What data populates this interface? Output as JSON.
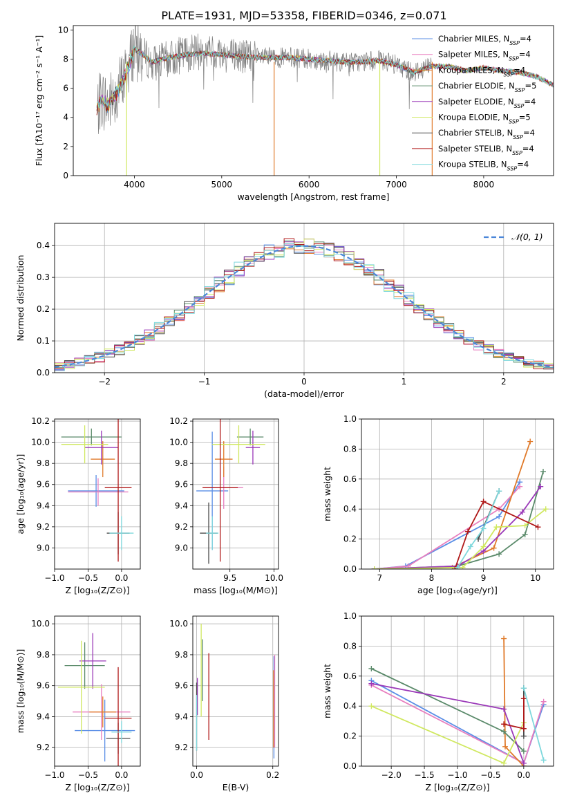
{
  "figure_title": "PLATE=1931, MJD=53358, FIBERID=0346, z=0.071",
  "chart_data": [
    {
      "id": "spectrum",
      "type": "line",
      "title": "PLATE=1931, MJD=53358, FIBERID=0346, z=0.071",
      "xlabel": "wavelength [Angstrom, rest frame]",
      "ylabel": "Flux [fλ10⁻¹⁷ erg cm⁻² s⁻¹ A⁻¹]",
      "xlim": [
        3300,
        8800
      ],
      "ylim": [
        0,
        10.3
      ],
      "xticks": [
        "4000",
        "5000",
        "6000",
        "7000",
        "8000"
      ],
      "yticks": [
        "0",
        "2",
        "4",
        "6",
        "8",
        "10"
      ],
      "grid": false,
      "legend_position": "right",
      "observed_color": "#808080",
      "observed_profile": {
        "x": [
          3570,
          3620,
          3700,
          3800,
          3900,
          4000,
          4100,
          4200,
          4400,
          4600,
          4800,
          5000,
          5200,
          5400,
          5600,
          5800,
          6000,
          6200,
          6400,
          6600,
          6800,
          7000,
          7200,
          7400
        ],
        "y": [
          4.4,
          5.3,
          4.9,
          5.8,
          6.9,
          8.9,
          8.3,
          7.7,
          8.0,
          8.4,
          8.5,
          8.4,
          8.2,
          8.1,
          8.1,
          8.1,
          8.0,
          7.9,
          7.8,
          7.8,
          7.9,
          7.6,
          7.1,
          7.6
        ]
      },
      "model_profile": {
        "x": [
          3570,
          3620,
          3700,
          3800,
          3900,
          4000,
          4100,
          4200,
          4400,
          4600,
          4800,
          5000,
          5200,
          5400,
          5600,
          5800,
          6000,
          6200,
          6400,
          6600,
          6800,
          7000,
          7200,
          7400,
          7600,
          7800,
          8000,
          8200,
          8400,
          8600,
          8800
        ],
        "y": [
          4.6,
          5.2,
          4.8,
          5.7,
          6.9,
          8.7,
          8.3,
          7.8,
          8.1,
          8.3,
          8.4,
          8.3,
          8.2,
          8.1,
          8.1,
          8.1,
          8.0,
          7.9,
          7.8,
          7.8,
          7.9,
          7.6,
          7.1,
          7.5,
          7.5,
          7.2,
          7.4,
          7.2,
          7.1,
          6.8,
          6.2
        ]
      },
      "series": [
        {
          "name": "Chabrier MILES, N_SSP=4",
          "color": "#5a8ee6"
        },
        {
          "name": "Salpeter MILES, N_SSP=4",
          "color": "#e87fbf"
        },
        {
          "name": "Kroupa MILES, N_SSP=4",
          "color": "#e07a2a"
        },
        {
          "name": "Chabrier ELODIE, N_SSP=5",
          "color": "#5a8a6a"
        },
        {
          "name": "Salpeter ELODIE, N_SSP=4",
          "color": "#9a38b8"
        },
        {
          "name": "Kroupa ELODIE, N_SSP=5",
          "color": "#d0e860"
        },
        {
          "name": "Chabrier STELIB, N_SSP=4",
          "color": "#4a4a4a"
        },
        {
          "name": "Salpeter STELIB, N_SSP=4",
          "color": "#b01818"
        },
        {
          "name": "Kroupa STELIB, N_SSP=4",
          "color": "#7ed8dc"
        }
      ],
      "legend": {
        "entries": [
          {
            "text": "Chabrier MILES, N",
            "sub": "SSP",
            "tail": "=4",
            "color": "#5a8ee6"
          },
          {
            "text": "Salpeter MILES, N",
            "sub": "SSP",
            "tail": "=4",
            "color": "#e87fbf"
          },
          {
            "text": "Kroupa MILES, N",
            "sub": "SSP",
            "tail": "=4",
            "color": "#e07a2a"
          },
          {
            "text": "Chabrier ELODIE, N",
            "sub": "SSP",
            "tail": "=5",
            "color": "#5a8a6a"
          },
          {
            "text": "Salpeter ELODIE, N",
            "sub": "SSP",
            "tail": "=4",
            "color": "#9a38b8"
          },
          {
            "text": "Kroupa ELODIE, N",
            "sub": "SSP",
            "tail": "=5",
            "color": "#d0e860"
          },
          {
            "text": "Chabrier STELIB, N",
            "sub": "SSP",
            "tail": "=4",
            "color": "#4a4a4a"
          },
          {
            "text": "Salpeter STELIB, N",
            "sub": "SSP",
            "tail": "=4",
            "color": "#b01818"
          },
          {
            "text": "Kroupa STELIB, N",
            "sub": "SSP",
            "tail": "=4",
            "color": "#7ed8dc"
          }
        ]
      },
      "spikes": [
        {
          "x": 3910,
          "color": "#d0e860"
        },
        {
          "x": 5600,
          "color": "#e07a2a"
        },
        {
          "x": 6810,
          "color": "#d0e860"
        },
        {
          "x": 7410,
          "color": "#e07a2a"
        }
      ]
    },
    {
      "id": "residuals",
      "type": "line",
      "xlabel": "(data-model)/error",
      "ylabel": "Normed distribution",
      "xlim": [
        -2.5,
        2.5
      ],
      "ylim": [
        0,
        0.47
      ],
      "xticks": [
        "−2",
        "−1",
        "0",
        "1",
        "2"
      ],
      "yticks": [
        "0.0",
        "0.1",
        "0.2",
        "0.3",
        "0.4"
      ],
      "grid": true,
      "legend_position": "top-right",
      "legend_label": "𝒩(0, 1)",
      "normal_curve": {
        "mean": 0,
        "std": 1,
        "color": "#4a86d8"
      },
      "bins": {
        "start": -2.5,
        "width": 0.1
      },
      "histogram_profile": [
        0.02,
        0.025,
        0.03,
        0.035,
        0.045,
        0.05,
        0.055,
        0.06,
        0.07,
        0.08,
        0.09,
        0.1,
        0.115,
        0.13,
        0.14,
        0.155,
        0.17,
        0.185,
        0.2,
        0.215,
        0.235,
        0.25,
        0.265,
        0.28,
        0.3,
        0.32,
        0.335,
        0.35,
        0.36,
        0.375,
        0.39,
        0.39,
        0.395,
        0.4,
        0.395,
        0.4,
        0.4,
        0.395,
        0.39,
        0.385,
        0.375,
        0.365,
        0.35,
        0.34,
        0.325,
        0.31,
        0.29,
        0.275,
        0.26,
        0.24,
        0.225,
        0.21,
        0.195,
        0.18,
        0.165,
        0.15,
        0.135,
        0.12,
        0.105,
        0.095,
        0.085,
        0.075,
        0.065,
        0.055,
        0.05,
        0.045,
        0.04,
        0.035,
        0.03,
        0.028
      ]
    },
    {
      "id": "age-vs-z",
      "type": "scatter",
      "xlabel": "Z [log₁₀(Z/Z⊙)]",
      "ylabel": "age  [log₁₀(age/yr)]",
      "xlim": [
        -1.0,
        0.28
      ],
      "ylim": [
        8.8,
        10.22
      ],
      "xticks": [
        "−1.0",
        "−0.5",
        "0.0"
      ],
      "yticks": [
        "9.0",
        "9.2",
        "9.4",
        "9.6",
        "9.8",
        "10.0",
        "10.2"
      ],
      "grid": true,
      "points": [
        {
          "x": -0.38,
          "y": 9.54,
          "xerr": 0.42,
          "yerr": 0.15,
          "color": "#5a8ee6"
        },
        {
          "x": -0.35,
          "y": 9.53,
          "xerr": 0.45,
          "yerr": 0.13,
          "color": "#e87fbf"
        },
        {
          "x": -0.28,
          "y": 9.84,
          "xerr": 0.18,
          "yerr": 0.17,
          "color": "#e07a2a"
        },
        {
          "x": -0.45,
          "y": 10.05,
          "xerr": 0.45,
          "yerr": 0.08,
          "color": "#5a8a6a"
        },
        {
          "x": -0.3,
          "y": 9.95,
          "xerr": 0.25,
          "yerr": 0.16,
          "color": "#9a38b8"
        },
        {
          "x": -0.55,
          "y": 9.98,
          "xerr": 0.35,
          "yerr": 0.18,
          "color": "#d0e860"
        },
        {
          "x": -0.05,
          "y": 9.14,
          "xerr": 0.17,
          "yerr": 0.2,
          "color": "#4a4a4a"
        },
        {
          "x": -0.05,
          "y": 9.57,
          "xerr": 0.2,
          "yerr": 0.7,
          "color": "#b01818"
        },
        {
          "x": 0.0,
          "y": 9.14,
          "xerr": 0.18,
          "yerr": 0.16,
          "color": "#7ed8dc"
        }
      ]
    },
    {
      "id": "age-vs-mass",
      "type": "scatter",
      "xlabel": "mass [log₁₀(M/M⊙)]",
      "ylabel": "",
      "xlim": [
        9.08,
        10.05
      ],
      "ylim": [
        8.8,
        10.22
      ],
      "xticks": [
        "9.5",
        "10.0"
      ],
      "yticks": [
        "9.0",
        "9.2",
        "9.4",
        "9.6",
        "9.8",
        "10.0",
        "10.2"
      ],
      "grid": true,
      "points": [
        {
          "x": 9.3,
          "y": 9.54,
          "xerr": 0.18,
          "yerr": 0.56,
          "color": "#5a8ee6"
        },
        {
          "x": 9.43,
          "y": 9.57,
          "xerr": 0.22,
          "yerr": 0.2,
          "color": "#e87fbf"
        },
        {
          "x": 9.43,
          "y": 9.84,
          "xerr": 0.1,
          "yerr": 0.17,
          "color": "#e07a2a"
        },
        {
          "x": 9.73,
          "y": 10.05,
          "xerr": 0.15,
          "yerr": 0.08,
          "color": "#5a8a6a"
        },
        {
          "x": 9.76,
          "y": 9.95,
          "xerr": 0.08,
          "yerr": 0.16,
          "color": "#9a38b8"
        },
        {
          "x": 9.6,
          "y": 9.98,
          "xerr": 0.3,
          "yerr": 0.18,
          "color": "#d0e860"
        },
        {
          "x": 9.26,
          "y": 9.14,
          "xerr": 0.1,
          "yerr": 0.29,
          "color": "#4a4a4a"
        },
        {
          "x": 9.39,
          "y": 9.57,
          "xerr": 0.2,
          "yerr": 0.7,
          "color": "#b01818"
        },
        {
          "x": 9.3,
          "y": 9.14,
          "xerr": 0.07,
          "yerr": 0.16,
          "color": "#7ed8dc"
        }
      ]
    },
    {
      "id": "weight-vs-age",
      "type": "line",
      "xlabel": "age  [log₁₀(age/yr)]",
      "ylabel": "mass weight",
      "xlim": [
        6.65,
        10.35
      ],
      "ylim": [
        0,
        1.0
      ],
      "xticks": [
        "7",
        "8",
        "9",
        "10"
      ],
      "yticks": [
        "0.0",
        "0.2",
        "0.4",
        "0.6",
        "0.8",
        "1.0"
      ],
      "grid": true,
      "series": [
        {
          "name": "Chabrier MILES",
          "color": "#5a8ee6",
          "x": [
            6.9,
            7.5,
            9.3,
            9.7
          ],
          "y": [
            0.0,
            0.02,
            0.35,
            0.58
          ]
        },
        {
          "name": "Salpeter MILES",
          "color": "#e87fbf",
          "x": [
            6.9,
            7.55,
            9.3,
            9.7
          ],
          "y": [
            0.0,
            0.02,
            0.4,
            0.55
          ]
        },
        {
          "name": "Kroupa MILES",
          "color": "#e07a2a",
          "x": [
            6.9,
            8.4,
            9.2,
            9.9
          ],
          "y": [
            0.0,
            0.01,
            0.14,
            0.85
          ]
        },
        {
          "name": "Chabrier ELODIE",
          "color": "#5a8a6a",
          "x": [
            6.9,
            8.5,
            9.3,
            9.8,
            10.15
          ],
          "y": [
            0.0,
            0.02,
            0.1,
            0.23,
            0.65
          ]
        },
        {
          "name": "Salpeter ELODIE",
          "color": "#9a38b8",
          "x": [
            6.9,
            8.5,
            9.0,
            9.75,
            10.1
          ],
          "y": [
            0.0,
            0.02,
            0.12,
            0.38,
            0.55
          ]
        },
        {
          "name": "Kroupa ELODIE",
          "color": "#d0e860",
          "x": [
            6.9,
            8.6,
            9.0,
            9.25,
            9.8,
            10.2
          ],
          "y": [
            0.0,
            0.01,
            0.15,
            0.28,
            0.29,
            0.4
          ]
        },
        {
          "name": "Chabrier STELIB",
          "color": "#4a4a4a",
          "x": [
            8.9,
            9.3
          ],
          "y": [
            0.2,
            0.52
          ]
        },
        {
          "name": "Salpeter STELIB",
          "color": "#b01818",
          "x": [
            8.45,
            8.7,
            9.0,
            10.05
          ],
          "y": [
            0.0,
            0.25,
            0.45,
            0.28
          ]
        },
        {
          "name": "Kroupa STELIB",
          "color": "#7ed8dc",
          "x": [
            8.5,
            8.75,
            9.0,
            9.3
          ],
          "y": [
            0.01,
            0.15,
            0.27,
            0.52
          ]
        }
      ]
    },
    {
      "id": "mass-vs-z",
      "type": "scatter",
      "xlabel": "Z [log₁₀(Z/Z⊙)]",
      "ylabel": "mass [log₁₀(M/M⊙)]",
      "xlim": [
        -1.0,
        0.28
      ],
      "ylim": [
        9.08,
        10.05
      ],
      "xticks": [
        "−1.0",
        "−0.5",
        "0.0"
      ],
      "yticks": [
        "9.2",
        "9.4",
        "9.6",
        "9.8",
        "10.0"
      ],
      "grid": true,
      "points": [
        {
          "x": -0.25,
          "y": 9.31,
          "xerr": 0.45,
          "yerr": 0.2,
          "color": "#5a8ee6"
        },
        {
          "x": -0.3,
          "y": 9.43,
          "xerr": 0.43,
          "yerr": 0.18,
          "color": "#e87fbf"
        },
        {
          "x": -0.28,
          "y": 9.43,
          "xerr": 0.2,
          "yerr": 0.1,
          "color": "#e07a2a"
        },
        {
          "x": -0.55,
          "y": 9.73,
          "xerr": 0.3,
          "yerr": 0.15,
          "color": "#5a8a6a"
        },
        {
          "x": -0.43,
          "y": 9.76,
          "xerr": 0.2,
          "yerr": 0.18,
          "color": "#9a38b8"
        },
        {
          "x": -0.6,
          "y": 9.59,
          "xerr": 0.35,
          "yerr": 0.3,
          "color": "#d0e860"
        },
        {
          "x": -0.05,
          "y": 9.26,
          "xerr": 0.18,
          "yerr": 0.1,
          "color": "#4a4a4a"
        },
        {
          "x": -0.05,
          "y": 9.39,
          "xerr": 0.2,
          "yerr": 0.33,
          "color": "#b01818"
        },
        {
          "x": 0.0,
          "y": 9.3,
          "xerr": 0.15,
          "yerr": 0.07,
          "color": "#7ed8dc"
        }
      ]
    },
    {
      "id": "mass-vs-ebv",
      "type": "scatter",
      "xlabel": "E(B-V)",
      "ylabel": "",
      "xlim": [
        -0.01,
        0.215
      ],
      "ylim": [
        9.08,
        10.05
      ],
      "xticks": [
        "0.0",
        "0.2"
      ],
      "yticks": [
        "9.2",
        "9.4",
        "9.6",
        "9.8",
        "10.0"
      ],
      "grid": true,
      "points": [
        {
          "x": 0.203,
          "y": 9.46,
          "xerr": 0.0,
          "yerr": 0.33,
          "color": "#5a8ee6"
        },
        {
          "x": 0.205,
          "y": 9.5,
          "xerr": 0.0,
          "yerr": 0.3,
          "color": "#e87fbf"
        },
        {
          "x": 0.202,
          "y": 9.45,
          "xerr": 0.0,
          "yerr": 0.25,
          "color": "#e07a2a"
        },
        {
          "x": 0.015,
          "y": 9.7,
          "xerr": 0.0,
          "yerr": 0.2,
          "color": "#5a8a6a"
        },
        {
          "x": 0.002,
          "y": 9.53,
          "xerr": 0.0,
          "yerr": 0.12,
          "color": "#9a38b8"
        },
        {
          "x": 0.012,
          "y": 9.7,
          "xerr": 0.0,
          "yerr": 0.3,
          "color": "#d0e860"
        },
        {
          "x": 0.0,
          "y": 9.4,
          "xerr": 0.0,
          "yerr": 0.22,
          "color": "#4a4a4a"
        },
        {
          "x": 0.032,
          "y": 9.53,
          "xerr": 0.0,
          "yerr": 0.28,
          "color": "#b01818"
        },
        {
          "x": 0.0,
          "y": 9.36,
          "xerr": 0.0,
          "yerr": 0.18,
          "color": "#7ed8dc"
        }
      ]
    },
    {
      "id": "weight-vs-z",
      "type": "line",
      "xlabel": "Z [log₁₀(Z/Z⊙)]",
      "ylabel": "mass weight",
      "xlim": [
        -2.45,
        0.45
      ],
      "ylim": [
        0,
        1.0
      ],
      "xticks": [
        "−2.0",
        "−1.5",
        "−1.0",
        "−0.5",
        "0.0"
      ],
      "yticks": [
        "0.0",
        "0.2",
        "0.4",
        "0.6",
        "0.8",
        "1.0"
      ],
      "grid": true,
      "series": [
        {
          "name": "Chabrier MILES",
          "color": "#5a8ee6",
          "x": [
            -2.3,
            0.0,
            0.3
          ],
          "y": [
            0.57,
            0.02,
            0.41
          ]
        },
        {
          "name": "Salpeter MILES",
          "color": "#e87fbf",
          "x": [
            -2.3,
            0.0,
            0.3
          ],
          "y": [
            0.54,
            0.02,
            0.43
          ]
        },
        {
          "name": "Kroupa MILES",
          "color": "#e07a2a",
          "x": [
            -0.3,
            -0.28,
            0.0
          ],
          "y": [
            0.85,
            0.13,
            0.0
          ]
        },
        {
          "name": "Chabrier ELODIE",
          "color": "#5a8a6a",
          "x": [
            -2.3,
            -0.3,
            0.0
          ],
          "y": [
            0.65,
            0.23,
            0.1
          ]
        },
        {
          "name": "Salpeter ELODIE",
          "color": "#9a38b8",
          "x": [
            -2.3,
            -0.3,
            0.0
          ],
          "y": [
            0.55,
            0.38,
            0.02
          ]
        },
        {
          "name": "Kroupa ELODIE",
          "color": "#d0e860",
          "x": [
            -2.3,
            -0.3,
            0.0
          ],
          "y": [
            0.4,
            0.02,
            0.29
          ]
        },
        {
          "name": "Chabrier STELIB",
          "color": "#4a4a4a",
          "x": [
            0.0,
            0.0
          ],
          "y": [
            0.52,
            0.2
          ]
        },
        {
          "name": "Salpeter STELIB",
          "color": "#b01818",
          "x": [
            -0.3,
            0.0,
            0.0
          ],
          "y": [
            0.28,
            0.25,
            0.45
          ]
        },
        {
          "name": "Kroupa STELIB",
          "color": "#7ed8dc",
          "x": [
            0.0,
            0.3
          ],
          "y": [
            0.52,
            0.04
          ]
        }
      ]
    }
  ]
}
